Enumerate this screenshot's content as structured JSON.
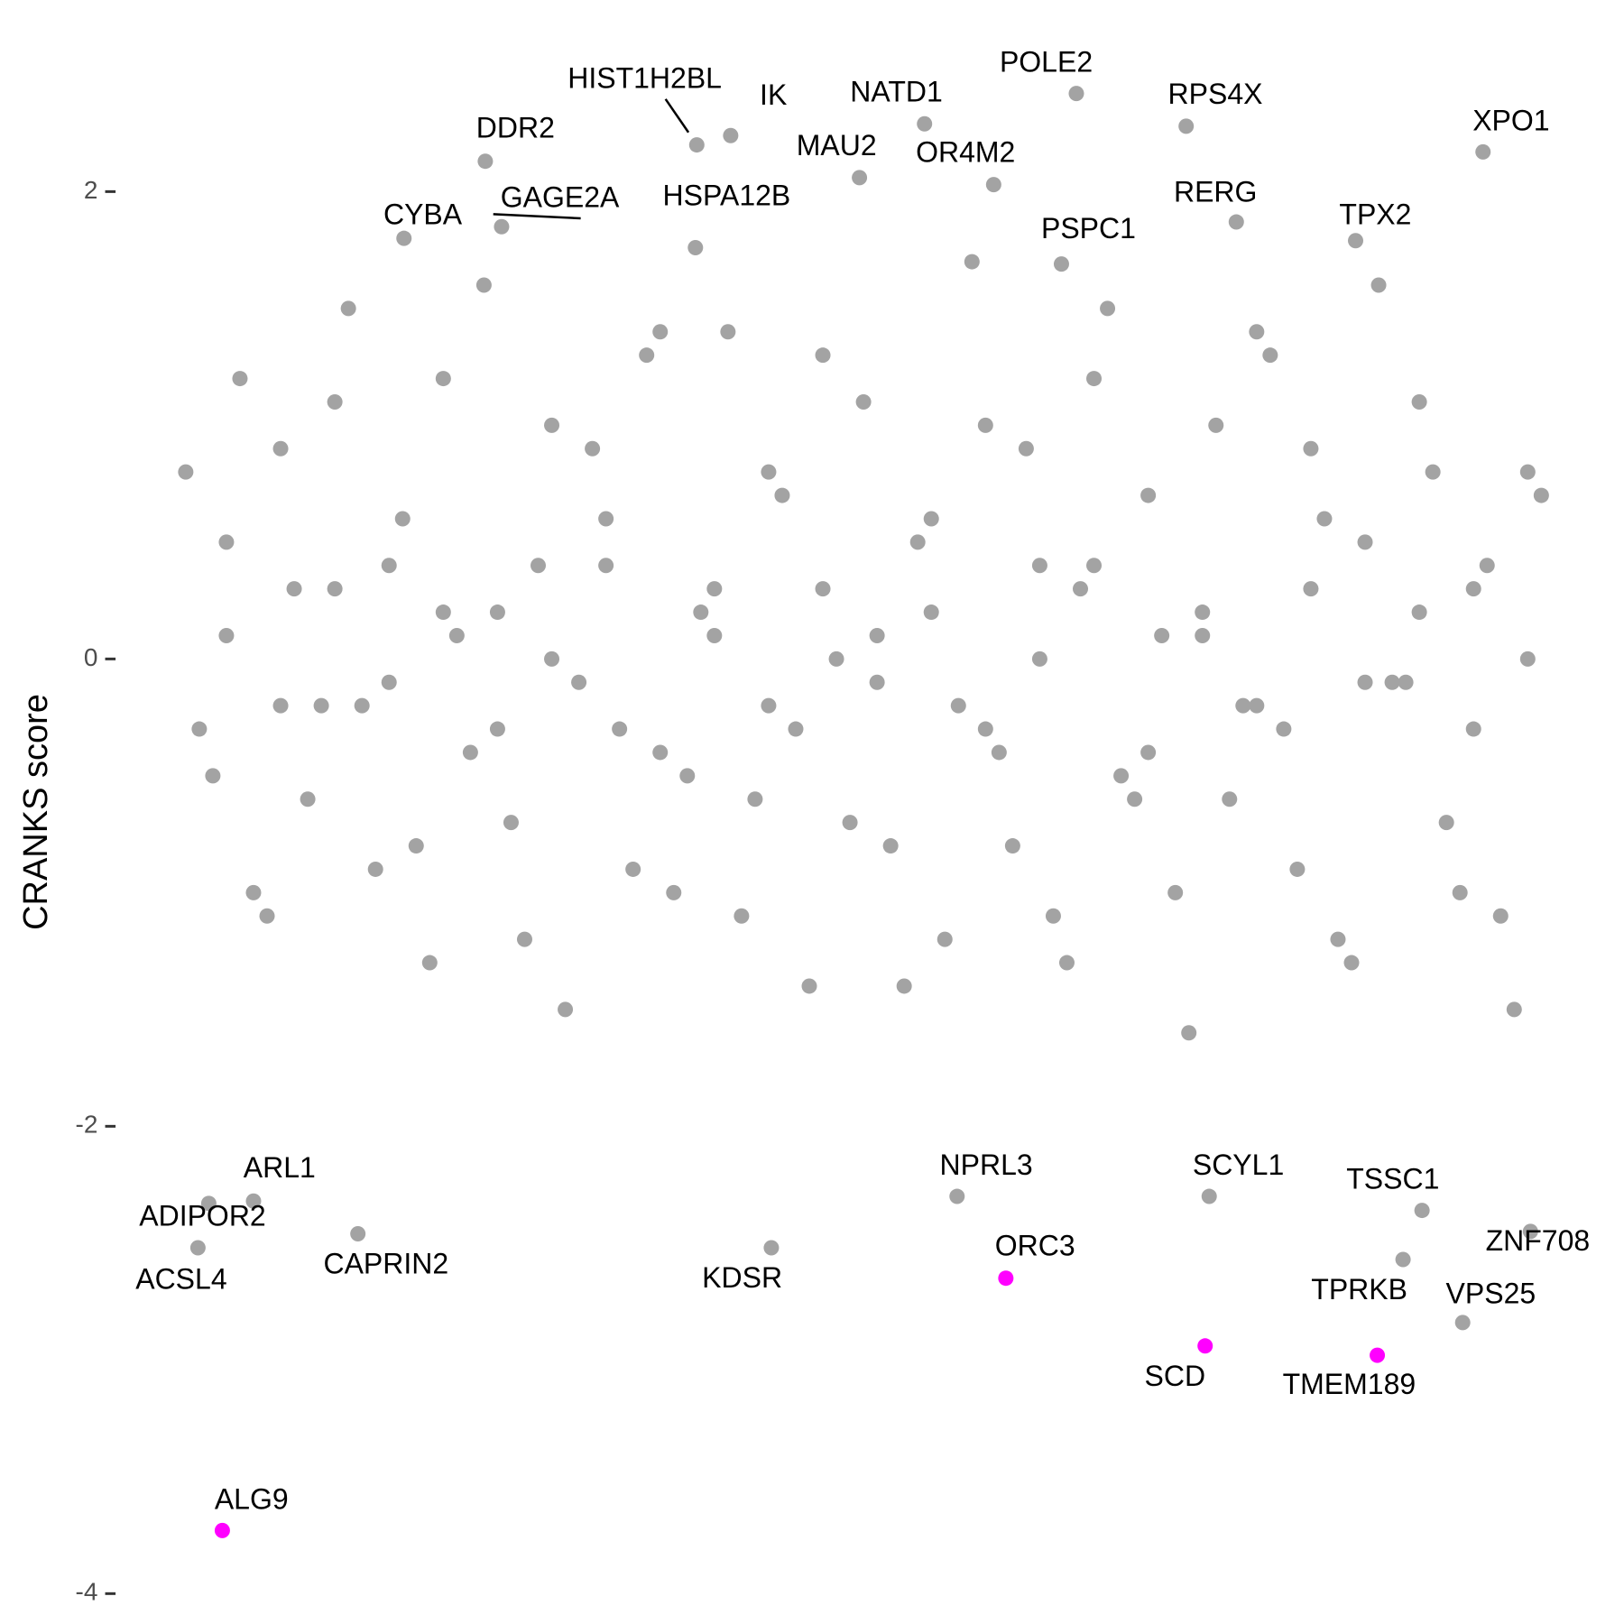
{
  "chart_data": {
    "type": "scatter",
    "y_label": "CRANKS score",
    "xlim": [
      -5.1,
      106.1
    ],
    "ylim": [
      -4.13,
      2.82
    ],
    "yticks": [
      -4,
      -2,
      0,
      2
    ],
    "grid": false,
    "series": [
      {
        "color": "#a3a3a3",
        "x": [
          0,
          2,
          4,
          6,
          8,
          10,
          12,
          14,
          16,
          18,
          20,
          22,
          24,
          26,
          28,
          30,
          32,
          34,
          36,
          38,
          40,
          42,
          44,
          46,
          48,
          50,
          52,
          54,
          56,
          58,
          60,
          62,
          64,
          66,
          68,
          70,
          72,
          74,
          76,
          78,
          80,
          82,
          84,
          86,
          88,
          90,
          92,
          94,
          96,
          98,
          100,
          1,
          3,
          5,
          7,
          9,
          11,
          13,
          15,
          17,
          19,
          21,
          23,
          25,
          27,
          29,
          31,
          33,
          35,
          37,
          39,
          41,
          43,
          45,
          47,
          49,
          51,
          53,
          55,
          57,
          59,
          61,
          63,
          65,
          67,
          69,
          71,
          73,
          75,
          77,
          79,
          81,
          83,
          85,
          87,
          89,
          91,
          93,
          95,
          97,
          99,
          3,
          7,
          11,
          15,
          19,
          23,
          27,
          31,
          35,
          39,
          43,
          47,
          51,
          55,
          59,
          63,
          67,
          71,
          75,
          79,
          83,
          87,
          91,
          95,
          99
        ],
        "values": [
          0.8,
          -0.5,
          1.2,
          -1.1,
          0.3,
          -0.2,
          1.5,
          -0.9,
          0.6,
          -1.3,
          0.1,
          1.6,
          -0.7,
          0.4,
          -1.5,
          0.9,
          -0.3,
          1.3,
          -1.0,
          0.2,
          1.4,
          -0.6,
          0.7,
          -1.4,
          0.0,
          1.1,
          -0.8,
          0.5,
          -1.2,
          1.7,
          -0.4,
          0.9,
          -1.1,
          0.3,
          1.5,
          -0.6,
          0.1,
          -1.6,
          1.0,
          -0.2,
          1.3,
          -0.9,
          0.6,
          -1.3,
          1.6,
          -0.1,
          0.8,
          -1.0,
          0.4,
          -1.5,
          0.7,
          -0.3,
          0.5,
          -1.0,
          0.9,
          -0.6,
          1.1,
          -0.2,
          0.4,
          -0.8,
          1.2,
          -0.4,
          0.2,
          -1.2,
          1.0,
          -0.1,
          0.6,
          -0.9,
          1.4,
          -0.5,
          0.3,
          -1.1,
          0.8,
          -0.3,
          1.3,
          -0.7,
          0.1,
          -1.4,
          0.6,
          -0.2,
          1.0,
          -0.8,
          0.4,
          -1.3,
          1.2,
          -0.5,
          0.7,
          -1.0,
          0.2,
          -0.6,
          1.4,
          -0.3,
          0.9,
          -1.2,
          0.5,
          -0.1,
          1.1,
          -0.7,
          0.3,
          -1.1,
          0.8,
          0.1,
          -0.2,
          0.3,
          -0.1,
          0.2,
          -0.3,
          0.0,
          0.4,
          -0.4,
          0.1,
          -0.2,
          0.3,
          -0.1,
          0.2,
          -0.3,
          0.0,
          0.4,
          -0.4,
          0.1,
          -0.2,
          0.3,
          -0.1,
          0.2,
          -0.3,
          0.0
        ]
      },
      {
        "color": "#a3a3a3",
        "labels": [
          "HIST1H2BL",
          "IK",
          "DDR2",
          "NATD1",
          "POLE2",
          "RPS4X",
          "XPO1",
          "MAU2",
          "OR4M2",
          "CYBA",
          "GAGE2A",
          "HSPA12B",
          "RERG",
          "PSPC1",
          "TPX2",
          "ARL1",
          "ADIPOR2",
          "ACSL4",
          "CAPRIN2",
          "KDSR",
          "NPRL3",
          "SCYL1",
          "TSSC1",
          "ZNF708",
          "TPRKB",
          "VPS25"
        ],
        "x": [
          37.7,
          40.2,
          22.1,
          54.5,
          65.7,
          73.8,
          95.7,
          49.7,
          59.6,
          16.1,
          23.3,
          37.6,
          77.5,
          64.6,
          86.3,
          5.0,
          1.7,
          0.9,
          12.7,
          43.2,
          56.9,
          75.5,
          91.2,
          99.2,
          89.8,
          94.2
        ],
        "values": [
          2.2,
          2.24,
          2.13,
          2.29,
          2.42,
          2.28,
          2.17,
          2.06,
          2.03,
          1.8,
          1.85,
          1.76,
          1.87,
          1.69,
          1.79,
          -2.32,
          -2.33,
          -2.52,
          -2.46,
          -2.52,
          -2.3,
          -2.3,
          -2.36,
          -2.45,
          -2.57,
          -2.84
        ]
      },
      {
        "color": "#ff00ff",
        "labels": [
          "ORC3",
          "SCD",
          "TMEM189",
          "ALG9"
        ],
        "x": [
          60.5,
          75.2,
          87.9,
          2.7
        ],
        "values": [
          -2.65,
          -2.94,
          -2.98,
          -3.73
        ]
      }
    ]
  }
}
